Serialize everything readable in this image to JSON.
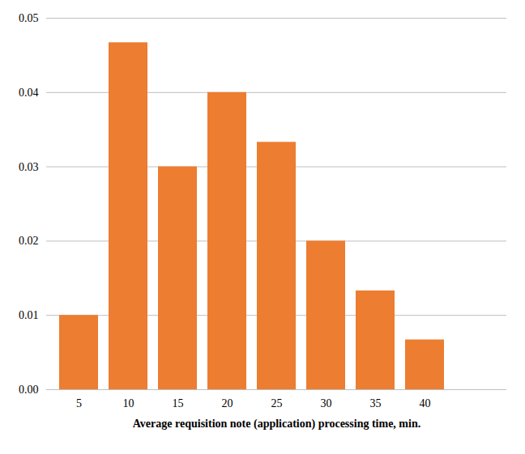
{
  "chart_data": {
    "type": "bar",
    "x_label": "Average requisition note (application) processing time, min.",
    "categories": [
      "5",
      "10",
      "15",
      "20",
      "25",
      "30",
      "35",
      "40",
      null
    ],
    "values": [
      0.01,
      0.0467,
      0.03,
      0.04,
      0.0333,
      0.02,
      0.0133,
      0.0067,
      null
    ],
    "color": "#ed7d31",
    "ylim": [
      0,
      0.05
    ],
    "yticks": [
      {
        "value": 0,
        "label": "0.00"
      },
      0.01,
      0.02,
      0.03,
      0.04,
      0.05
    ],
    "grid": true
  }
}
